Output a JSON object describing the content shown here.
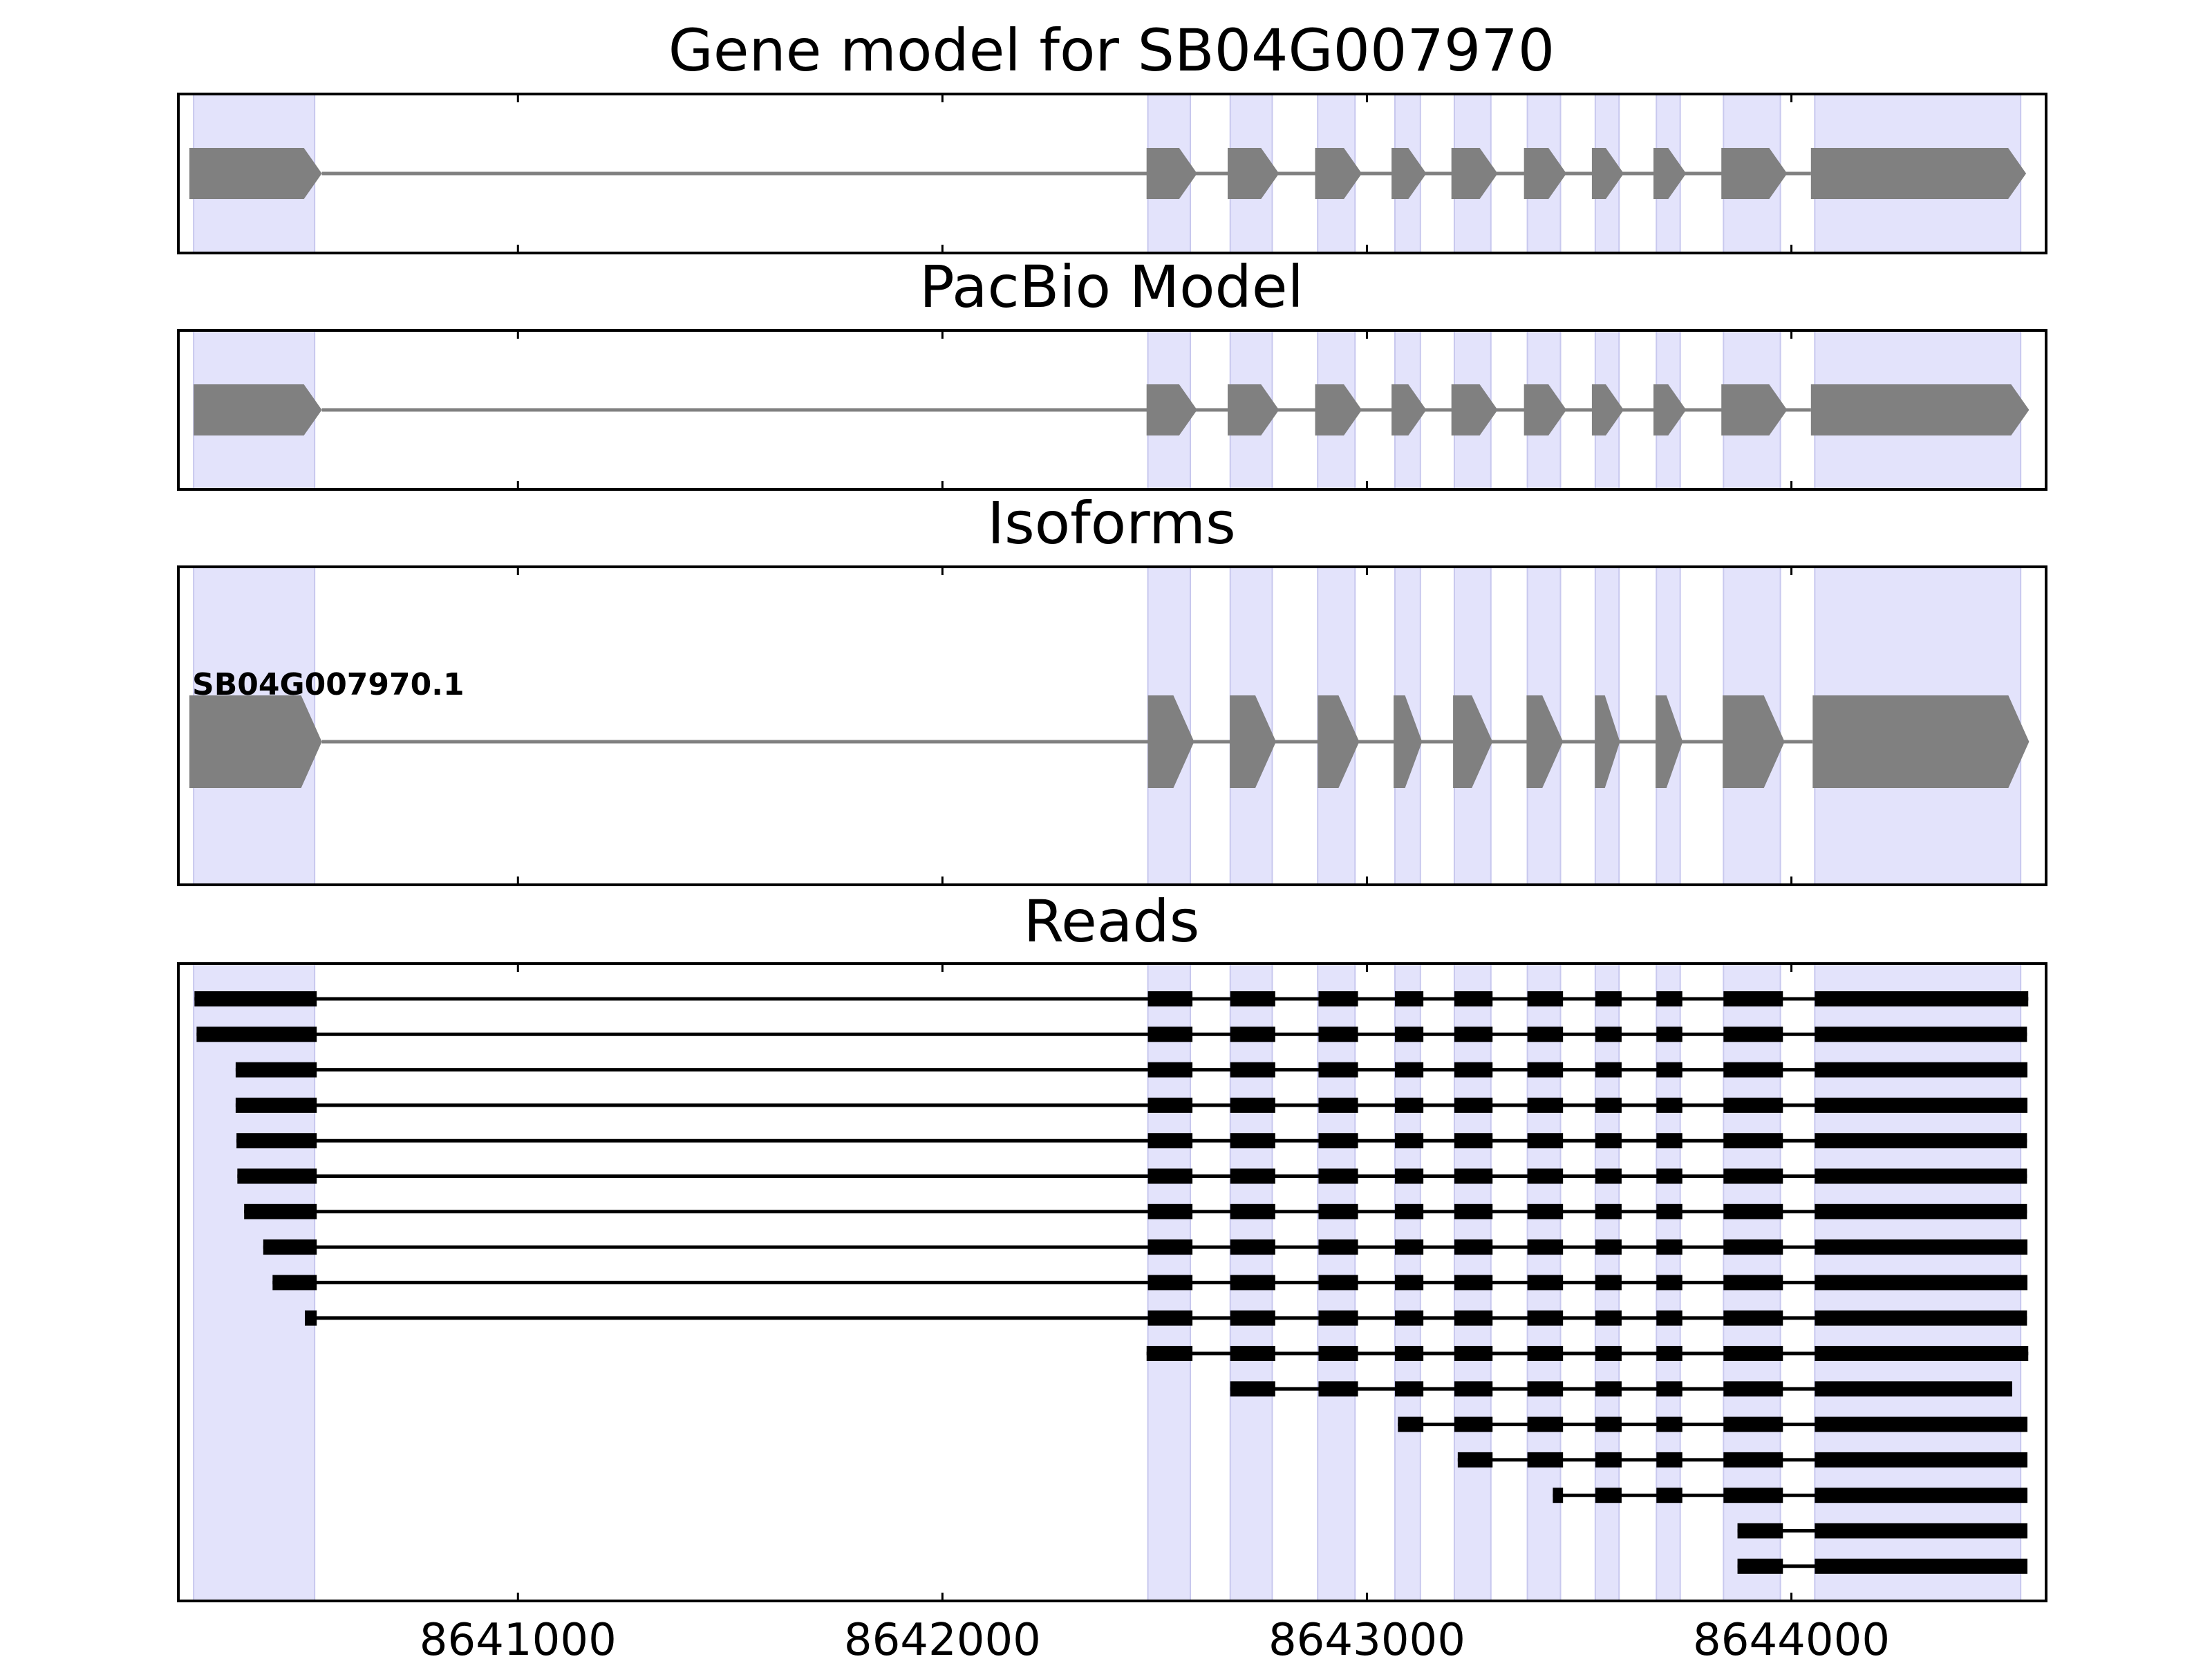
{
  "chart_data": {
    "type": "gene-structure",
    "gene_id": "SB04G007970",
    "xlim": [
      8640200,
      8644600
    ],
    "x_ticks": [
      8641000,
      8642000,
      8643000,
      8644000
    ],
    "x_tick_labels": [
      "8641000",
      "8642000",
      "8643000",
      "8644000"
    ],
    "colors": {
      "highlight": "#e3e3fb",
      "highlight_edge": "#c8c8ee",
      "model": "#808080",
      "read": "#000000",
      "frame": "#000000"
    },
    "exon_highlights": [
      [
        8640236,
        8640521
      ],
      [
        8642484,
        8642584
      ],
      [
        8642678,
        8642777
      ],
      [
        8642884,
        8642972
      ],
      [
        8643066,
        8643126
      ],
      [
        8643206,
        8643292
      ],
      [
        8643378,
        8643456
      ],
      [
        8643538,
        8643594
      ],
      [
        8643682,
        8643738
      ],
      [
        8643840,
        8643974
      ],
      [
        8644055,
        8644540
      ]
    ],
    "panels": [
      {
        "name": "gene-model",
        "title": "Gene model for SB04G007970",
        "strand": "+",
        "exons": [
          [
            8640226,
            8640538
          ],
          [
            8642481,
            8642600
          ],
          [
            8642672,
            8642793
          ],
          [
            8642878,
            8642988
          ],
          [
            8643058,
            8643140
          ],
          [
            8643199,
            8643308
          ],
          [
            8643370,
            8643470
          ],
          [
            8643530,
            8643605
          ],
          [
            8643675,
            8643752
          ],
          [
            8643835,
            8643990
          ],
          [
            8644046,
            8644553
          ]
        ]
      },
      {
        "name": "pacbio-model",
        "title": "PacBio Model",
        "strand": "+",
        "exons": [
          [
            8640236,
            8640538
          ],
          [
            8642481,
            8642600
          ],
          [
            8642672,
            8642793
          ],
          [
            8642878,
            8642988
          ],
          [
            8643058,
            8643140
          ],
          [
            8643199,
            8643308
          ],
          [
            8643370,
            8643470
          ],
          [
            8643530,
            8643605
          ],
          [
            8643675,
            8643752
          ],
          [
            8643835,
            8643990
          ],
          [
            8644046,
            8644560
          ]
        ]
      },
      {
        "name": "isoforms",
        "title": "Isoforms",
        "strand": "+",
        "isoform_label": "SB04G007970.1",
        "exons": [
          [
            8640226,
            8640538
          ],
          [
            8642484,
            8642593
          ],
          [
            8642677,
            8642786
          ],
          [
            8642884,
            8642982
          ],
          [
            8643063,
            8643130
          ],
          [
            8643203,
            8643296
          ],
          [
            8643376,
            8643462
          ],
          [
            8643537,
            8643596
          ],
          [
            8643680,
            8643744
          ],
          [
            8643838,
            8643984
          ],
          [
            8644050,
            8644560
          ]
        ]
      },
      {
        "name": "reads",
        "title": "Reads",
        "reads": [
          [
            [
              8640238,
              8640526
            ],
            [
              8642484,
              8642589
            ],
            [
              8642678,
              8642784
            ],
            [
              8642886,
              8642979
            ],
            [
              8643066,
              8643133
            ],
            [
              8643206,
              8643296
            ],
            [
              8643378,
              8643462
            ],
            [
              8643538,
              8643600
            ],
            [
              8643682,
              8643743
            ],
            [
              8643840,
              8643980
            ],
            [
              8644055,
              8644558
            ]
          ],
          [
            [
              8640243,
              8640526
            ],
            [
              8642484,
              8642589
            ],
            [
              8642678,
              8642784
            ],
            [
              8642886,
              8642979
            ],
            [
              8643066,
              8643133
            ],
            [
              8643206,
              8643296
            ],
            [
              8643378,
              8643462
            ],
            [
              8643538,
              8643600
            ],
            [
              8643682,
              8643743
            ],
            [
              8643840,
              8643980
            ],
            [
              8644055,
              8644555
            ]
          ],
          [
            [
              8640335,
              8640526
            ],
            [
              8642484,
              8642589
            ],
            [
              8642678,
              8642784
            ],
            [
              8642886,
              8642979
            ],
            [
              8643066,
              8643133
            ],
            [
              8643206,
              8643296
            ],
            [
              8643378,
              8643462
            ],
            [
              8643538,
              8643600
            ],
            [
              8643682,
              8643743
            ],
            [
              8643840,
              8643980
            ],
            [
              8644055,
              8644556
            ]
          ],
          [
            [
              8640335,
              8640526
            ],
            [
              8642484,
              8642589
            ],
            [
              8642678,
              8642784
            ],
            [
              8642886,
              8642979
            ],
            [
              8643066,
              8643133
            ],
            [
              8643206,
              8643296
            ],
            [
              8643378,
              8643462
            ],
            [
              8643538,
              8643600
            ],
            [
              8643682,
              8643743
            ],
            [
              8643840,
              8643980
            ],
            [
              8644055,
              8644556
            ]
          ],
          [
            [
              8640337,
              8640526
            ],
            [
              8642484,
              8642589
            ],
            [
              8642678,
              8642784
            ],
            [
              8642886,
              8642979
            ],
            [
              8643066,
              8643133
            ],
            [
              8643206,
              8643296
            ],
            [
              8643378,
              8643462
            ],
            [
              8643538,
              8643600
            ],
            [
              8643682,
              8643743
            ],
            [
              8643840,
              8643980
            ],
            [
              8644055,
              8644555
            ]
          ],
          [
            [
              8640339,
              8640526
            ],
            [
              8642484,
              8642589
            ],
            [
              8642678,
              8642784
            ],
            [
              8642886,
              8642979
            ],
            [
              8643066,
              8643133
            ],
            [
              8643206,
              8643296
            ],
            [
              8643378,
              8643462
            ],
            [
              8643538,
              8643600
            ],
            [
              8643682,
              8643743
            ],
            [
              8643840,
              8643980
            ],
            [
              8644055,
              8644555
            ]
          ],
          [
            [
              8640355,
              8640526
            ],
            [
              8642484,
              8642589
            ],
            [
              8642678,
              8642784
            ],
            [
              8642886,
              8642979
            ],
            [
              8643066,
              8643133
            ],
            [
              8643206,
              8643296
            ],
            [
              8643378,
              8643462
            ],
            [
              8643538,
              8643600
            ],
            [
              8643682,
              8643743
            ],
            [
              8643840,
              8643980
            ],
            [
              8644055,
              8644555
            ]
          ],
          [
            [
              8640400,
              8640526
            ],
            [
              8642484,
              8642589
            ],
            [
              8642678,
              8642784
            ],
            [
              8642886,
              8642979
            ],
            [
              8643066,
              8643133
            ],
            [
              8643206,
              8643296
            ],
            [
              8643378,
              8643462
            ],
            [
              8643538,
              8643600
            ],
            [
              8643682,
              8643743
            ],
            [
              8643840,
              8643980
            ],
            [
              8644055,
              8644556
            ]
          ],
          [
            [
              8640422,
              8640526
            ],
            [
              8642484,
              8642589
            ],
            [
              8642678,
              8642784
            ],
            [
              8642886,
              8642979
            ],
            [
              8643066,
              8643133
            ],
            [
              8643206,
              8643296
            ],
            [
              8643378,
              8643462
            ],
            [
              8643538,
              8643600
            ],
            [
              8643682,
              8643743
            ],
            [
              8643840,
              8643980
            ],
            [
              8644055,
              8644556
            ]
          ],
          [
            [
              8640498,
              8640526
            ],
            [
              8642484,
              8642589
            ],
            [
              8642678,
              8642784
            ],
            [
              8642886,
              8642979
            ],
            [
              8643066,
              8643133
            ],
            [
              8643206,
              8643296
            ],
            [
              8643378,
              8643462
            ],
            [
              8643538,
              8643600
            ],
            [
              8643682,
              8643743
            ],
            [
              8643840,
              8643980
            ],
            [
              8644055,
              8644555
            ]
          ],
          [
            [
              8642481,
              8642589
            ],
            [
              8642678,
              8642784
            ],
            [
              8642886,
              8642979
            ],
            [
              8643066,
              8643133
            ],
            [
              8643206,
              8643296
            ],
            [
              8643378,
              8643462
            ],
            [
              8643538,
              8643600
            ],
            [
              8643682,
              8643743
            ],
            [
              8643840,
              8643980
            ],
            [
              8644055,
              8644558
            ]
          ],
          [
            [
              8642678,
              8642784
            ],
            [
              8642886,
              8642979
            ],
            [
              8643066,
              8643133
            ],
            [
              8643206,
              8643296
            ],
            [
              8643378,
              8643462
            ],
            [
              8643538,
              8643600
            ],
            [
              8643682,
              8643743
            ],
            [
              8643840,
              8643980
            ],
            [
              8644055,
              8644520
            ]
          ],
          [
            [
              8643073,
              8643133
            ],
            [
              8643206,
              8643296
            ],
            [
              8643378,
              8643462
            ],
            [
              8643538,
              8643600
            ],
            [
              8643682,
              8643743
            ],
            [
              8643840,
              8643980
            ],
            [
              8644055,
              8644556
            ]
          ],
          [
            [
              8643214,
              8643296
            ],
            [
              8643378,
              8643462
            ],
            [
              8643538,
              8643600
            ],
            [
              8643682,
              8643743
            ],
            [
              8643840,
              8643980
            ],
            [
              8644055,
              8644556
            ]
          ],
          [
            [
              8643438,
              8643462
            ],
            [
              8643538,
              8643600
            ],
            [
              8643682,
              8643743
            ],
            [
              8643840,
              8643980
            ],
            [
              8644055,
              8644556
            ]
          ],
          [
            [
              8643873,
              8643980
            ],
            [
              8644055,
              8644556
            ]
          ],
          [
            [
              8643873,
              8643980
            ],
            [
              8644055,
              8644556
            ]
          ]
        ]
      }
    ]
  }
}
